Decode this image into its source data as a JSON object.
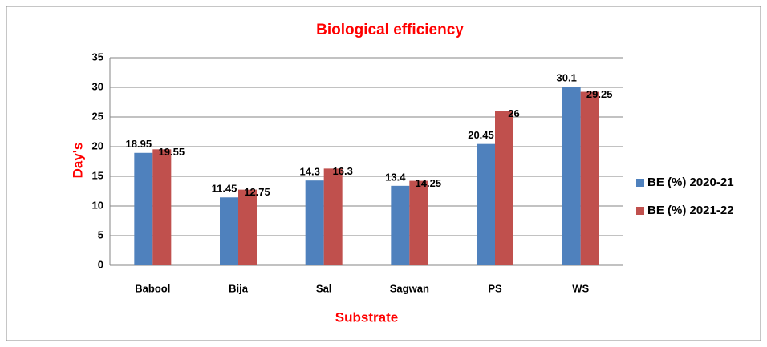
{
  "chart_data": {
    "type": "bar",
    "title": "Biological efficiency",
    "xlabel": "Substrate",
    "ylabel": "Day's",
    "categories": [
      "Babool",
      "Bija",
      "Sal",
      "Sagwan",
      "PS",
      "WS"
    ],
    "series": [
      {
        "name": "BE (%) 2020-21",
        "color": "#4f81bd",
        "values": [
          18.95,
          11.45,
          14.3,
          13.4,
          20.45,
          30.1
        ]
      },
      {
        "name": "BE (%) 2021-22",
        "color": "#c0504d",
        "values": [
          19.55,
          12.75,
          16.3,
          14.25,
          26,
          29.25
        ]
      }
    ],
    "ylim": [
      0,
      35
    ],
    "yticks": [
      0,
      5,
      10,
      15,
      20,
      25,
      30,
      35
    ],
    "grid": true,
    "legend": "right"
  }
}
